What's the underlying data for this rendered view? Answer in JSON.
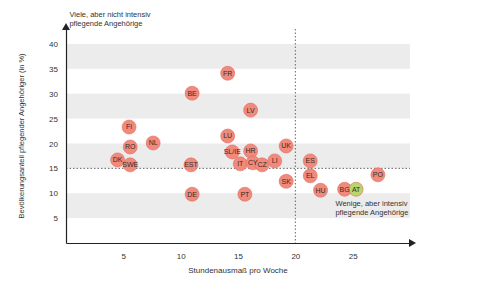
{
  "chart_data": {
    "type": "scatter",
    "x_label": "Stundenausmaß pro Woche",
    "y_label": "Bevölkerungsanteil pflegender Angehöriger (in %)",
    "labels": [
      "FR",
      "BE",
      "LV",
      "FI",
      "LU",
      "NL",
      "RO",
      "UK",
      "HR",
      "SL/IE",
      "DK",
      "SWE",
      "EST",
      "IT",
      "CY",
      "CZ",
      "LI",
      "ES",
      "SK",
      "EL",
      "PO",
      "HU",
      "BG",
      "AT",
      "DE",
      "PT"
    ],
    "x": [
      14.1,
      11.0,
      16.1,
      5.5,
      14.1,
      7.6,
      5.6,
      19.2,
      16.1,
      14.5,
      4.5,
      5.6,
      10.9,
      15.2,
      16.3,
      17.1,
      18.2,
      21.3,
      19.2,
      21.3,
      27.2,
      22.2,
      24.3,
      25.3,
      11.0,
      15.6
    ],
    "values": [
      34.1,
      30.1,
      26.7,
      23.3,
      21.5,
      20.1,
      19.3,
      19.5,
      18.5,
      18.3,
      16.7,
      15.7,
      15.7,
      15.9,
      16.1,
      15.7,
      16.5,
      16.5,
      12.4,
      13.5,
      13.7,
      10.6,
      10.8,
      10.8,
      9.8,
      9.8
    ],
    "colors": [
      "#f08a7c",
      "#f08a7c",
      "#f08a7c",
      "#f08a7c",
      "#f08a7c",
      "#f08a7c",
      "#f08a7c",
      "#f08a7c",
      "#f08a7c",
      "#f08a7c",
      "#f08a7c",
      "#f08a7c",
      "#f08a7c",
      "#f08a7c",
      "#f08a7c",
      "#f08a7c",
      "#f08a7c",
      "#f08a7c",
      "#f08a7c",
      "#f08a7c",
      "#f08a7c",
      "#f08a7c",
      "#f08a7c",
      "#b7d66b",
      "#f08a7c",
      "#f08a7c"
    ],
    "xlim": [
      0,
      30
    ],
    "ylim": [
      0,
      43
    ],
    "xticks": [
      5,
      10,
      15,
      20,
      25
    ],
    "yticks": [
      5,
      10,
      15,
      20,
      25,
      30,
      35,
      40
    ],
    "grid": true,
    "reference_lines": [
      {
        "axis": "x",
        "value": 20
      },
      {
        "axis": "y",
        "value": 15
      }
    ],
    "annotations": [
      {
        "lines": [
          "Viele, aber nicht intensiv",
          "pflegende Angehörige"
        ],
        "x": 0.3,
        "y": 45.5
      },
      {
        "lines": [
          "Wenige, aber intensiv",
          "pflegende Angehörige"
        ],
        "x": 23.5,
        "y": 7.5
      }
    ]
  }
}
